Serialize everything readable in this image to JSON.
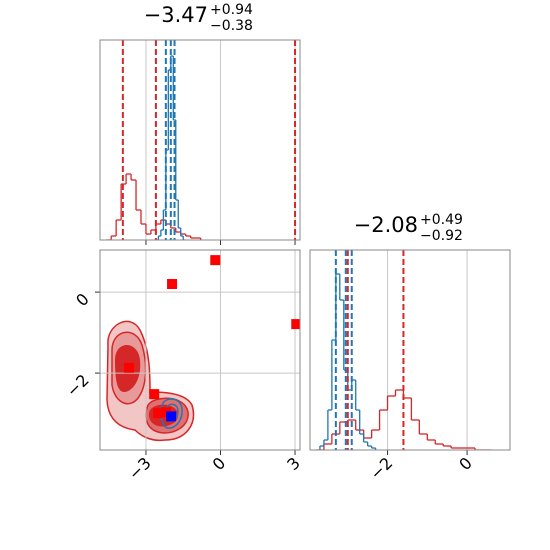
{
  "chart_data": [
    {
      "type": "histogram",
      "title": {
        "main": "−3.47",
        "plus": "+0.94",
        "minus": "−0.38"
      },
      "xlim": [
        -4.85,
        3.2
      ],
      "xticks": [
        -3,
        0,
        3
      ],
      "ylim": [
        0,
        1
      ],
      "grid": true,
      "show_tick_labels": false,
      "series": [
        {
          "color": "#d62728",
          "bins": [
            -4.6,
            -4.4,
            -4.2,
            -4.0,
            -3.8,
            -3.6,
            -3.4,
            -3.2,
            -3.0,
            -2.8,
            -2.6,
            -2.4,
            -2.2,
            -2.0,
            -1.8,
            -1.6,
            -1.4,
            -1.2,
            -1.0,
            -0.8
          ],
          "values": [
            0.0,
            0.02,
            0.1,
            0.28,
            0.33,
            0.3,
            0.15,
            0.08,
            0.03,
            0.05,
            0.08,
            0.1,
            0.08,
            0.06,
            0.04,
            0.03,
            0.02,
            0.01,
            0.01
          ]
        },
        {
          "color": "#1f77b4",
          "bins": [
            -2.6,
            -2.5,
            -2.4,
            -2.3,
            -2.2,
            -2.1,
            -2.0,
            -1.9,
            -1.8,
            -1.7,
            -1.6,
            -1.5,
            -1.4
          ],
          "values": [
            0.0,
            0.02,
            0.05,
            0.15,
            0.45,
            0.85,
            0.92,
            0.6,
            0.2,
            0.06,
            0.02,
            0.0
          ]
        }
      ],
      "quantiles": [
        {
          "color": "#d62728",
          "values": [
            -3.93,
            -2.6,
            3.0
          ]
        },
        {
          "color": "#1f77b4",
          "values": [
            -2.2,
            -2.0,
            -1.85
          ]
        }
      ]
    },
    {
      "type": "scatter",
      "xlim": [
        -4.85,
        3.2
      ],
      "xticks": [
        {
          "value": -3,
          "label": "−3"
        },
        0,
        3
      ],
      "ylim": [
        -3.9,
        1.04
      ],
      "yticks": [
        0,
        {
          "value": -2,
          "label": "−2"
        }
      ],
      "grid": true,
      "show_tick_labels": true,
      "series": [
        {
          "color": "#ff0000",
          "x": [
            -0.21,
            -1.95,
            3.05,
            -3.68,
            -2.67,
            -2.51,
            -2.19
          ],
          "y": [
            0.79,
            0.2,
            -0.79,
            -1.87,
            -2.52,
            -2.99,
            -2.97
          ]
        },
        {
          "color": "#0000ff",
          "x": [
            -1.99
          ],
          "y": [
            -3.07
          ]
        }
      ]
    },
    {
      "type": "histogram",
      "title": {
        "main": "−2.08",
        "plus": "+0.49",
        "minus": "−0.92"
      },
      "xlim": [
        -3.95,
        1.08
      ],
      "xticks": [
        {
          "value": -2,
          "label": "−2"
        },
        0
      ],
      "ylim": [
        0,
        1
      ],
      "grid": true,
      "show_tick_labels": true,
      "series": [
        {
          "color": "#d62728",
          "bins": [
            -3.8,
            -3.6,
            -3.4,
            -3.2,
            -3.0,
            -2.8,
            -2.6,
            -2.4,
            -2.2,
            -2.0,
            -1.8,
            -1.6,
            -1.4,
            -1.2,
            -1.0,
            -0.8,
            -0.6,
            -0.4,
            -0.2,
            0.0,
            0.2,
            0.4,
            0.6
          ],
          "values": [
            0.0,
            0.03,
            0.08,
            0.14,
            0.15,
            0.1,
            0.06,
            0.1,
            0.2,
            0.27,
            0.3,
            0.26,
            0.15,
            0.08,
            0.05,
            0.03,
            0.02,
            0.01,
            0.01,
            0.01,
            0.0,
            0.0
          ]
        },
        {
          "color": "#1f77b4",
          "bins": [
            -3.7,
            -3.6,
            -3.5,
            -3.4,
            -3.3,
            -3.2,
            -3.1,
            -3.0,
            -2.9,
            -2.8,
            -2.7,
            -2.6,
            -2.5,
            -2.4,
            -2.3
          ],
          "values": [
            0.02,
            0.05,
            0.2,
            0.55,
            0.88,
            0.75,
            0.4,
            0.3,
            0.35,
            0.2,
            0.08,
            0.04,
            0.02,
            0.01
          ]
        }
      ],
      "quantiles": [
        {
          "color": "#1f77b4",
          "values": [
            -3.3,
            -3.05,
            -2.9
          ]
        },
        {
          "color": "#d62728",
          "values": [
            -3.0,
            -1.6
          ]
        }
      ]
    }
  ]
}
